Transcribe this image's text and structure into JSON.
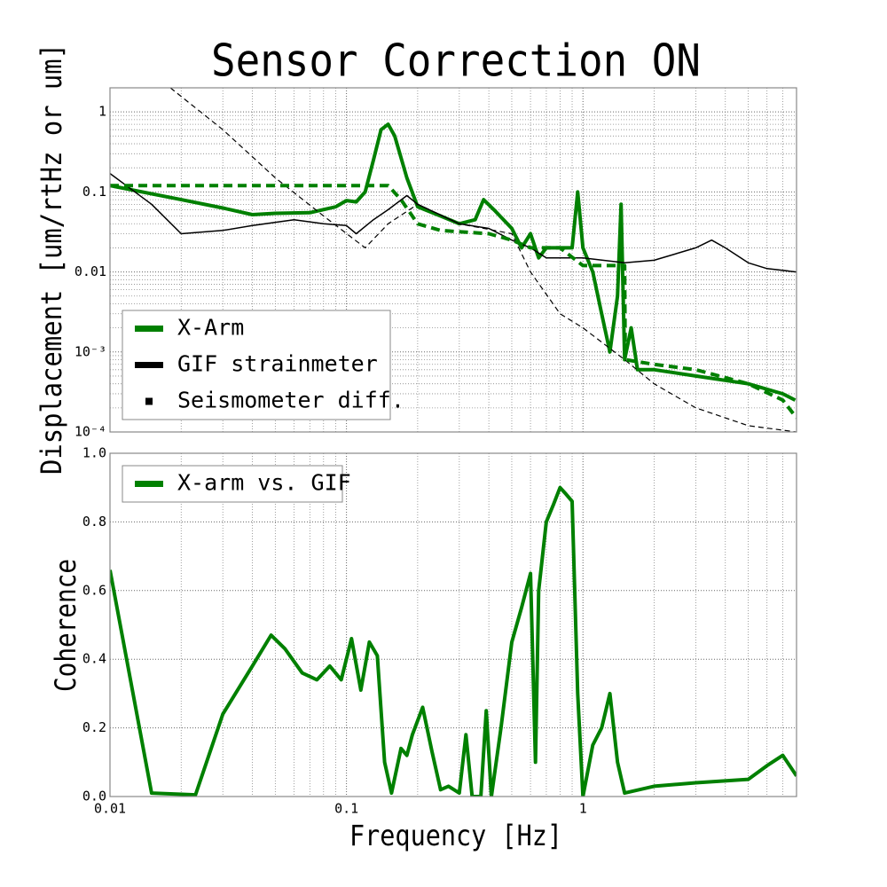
{
  "chart_data": [
    {
      "type": "line",
      "title": "Sensor Correction ON",
      "ylabel": "Displacement [um/rtHz or um]",
      "xscale": "log",
      "yscale": "log",
      "grid": true,
      "legend": "lower left",
      "xlim": [
        0.01,
        8
      ],
      "ylim": [
        0.0001,
        2
      ],
      "xticks": [
        0.01,
        0.1,
        1
      ],
      "yticks": [
        {
          "value": 0.0001,
          "label": "10⁻⁴"
        },
        {
          "value": 0.001,
          "label": "10⁻³"
        },
        0.01,
        0.1,
        1
      ],
      "series": [
        {
          "name": "X-Arm",
          "color": "#008000",
          "width": 4,
          "dash": false,
          "x": [
            0.01,
            0.02,
            0.03,
            0.04,
            0.05,
            0.07,
            0.09,
            0.1,
            0.11,
            0.12,
            0.13,
            0.14,
            0.15,
            0.16,
            0.18,
            0.2,
            0.25,
            0.3,
            0.35,
            0.38,
            0.42,
            0.5,
            0.55,
            0.6,
            0.65,
            0.7,
            0.8,
            0.9,
            0.95,
            1.0,
            1.1,
            1.2,
            1.3,
            1.4,
            1.45,
            1.5,
            1.6,
            1.7,
            2,
            3,
            5,
            7,
            7.9
          ],
          "values": [
            0.12,
            0.08,
            0.063,
            0.052,
            0.054,
            0.055,
            0.065,
            0.078,
            0.075,
            0.1,
            0.25,
            0.6,
            0.7,
            0.5,
            0.15,
            0.065,
            0.05,
            0.04,
            0.045,
            0.08,
            0.06,
            0.035,
            0.02,
            0.03,
            0.015,
            0.02,
            0.02,
            0.02,
            0.1,
            0.02,
            0.01,
            0.003,
            0.001,
            0.005,
            0.07,
            0.0008,
            0.002,
            0.0006,
            0.0006,
            0.0005,
            0.0004,
            0.0003,
            0.00025
          ]
        },
        {
          "name": "GIF strainmeter",
          "color": "#000000",
          "width": 1.5,
          "dash": false,
          "x": [
            0.01,
            0.015,
            0.02,
            0.03,
            0.04,
            0.06,
            0.08,
            0.1,
            0.11,
            0.13,
            0.15,
            0.18,
            0.2,
            0.3,
            0.4,
            0.5,
            0.6,
            0.7,
            1,
            1.5,
            2,
            3,
            3.5,
            4,
            5,
            6,
            8
          ],
          "values": [
            0.17,
            0.07,
            0.03,
            0.033,
            0.038,
            0.045,
            0.04,
            0.038,
            0.03,
            0.045,
            0.06,
            0.09,
            0.07,
            0.04,
            0.035,
            0.025,
            0.02,
            0.015,
            0.015,
            0.013,
            0.014,
            0.02,
            0.025,
            0.02,
            0.013,
            0.011,
            0.01
          ]
        },
        {
          "name": "Seismometer diff.",
          "color": "#000000",
          "width": 1.2,
          "dash": true,
          "x": [
            0.018,
            0.03,
            0.05,
            0.08,
            0.12,
            0.15,
            0.2,
            0.3,
            0.5,
            0.6,
            0.8,
            1,
            1.5,
            2,
            3,
            5,
            8
          ],
          "values": [
            2,
            0.6,
            0.15,
            0.05,
            0.02,
            0.04,
            0.07,
            0.04,
            0.03,
            0.01,
            0.003,
            0.002,
            0.0008,
            0.0004,
            0.0002,
            0.00012,
            0.0001
          ]
        },
        {
          "color": "#008000",
          "width": 4,
          "dash": true,
          "x": [
            0.01,
            0.15,
            0.17,
            0.2,
            0.25,
            0.4,
            0.5,
            0.6,
            0.8,
            1,
            1.5,
            1.51,
            2,
            3,
            5,
            7,
            8
          ],
          "values": [
            0.12,
            0.12,
            0.08,
            0.04,
            0.033,
            0.03,
            0.025,
            0.02,
            0.02,
            0.012,
            0.012,
            0.0008,
            0.0007,
            0.0006,
            0.0004,
            0.00025,
            0.00015
          ]
        }
      ]
    },
    {
      "type": "line",
      "ylabel": "Coherence",
      "xlabel": "Frequency [Hz]",
      "xscale": "log",
      "yscale": "linear",
      "grid": true,
      "legend": "upper left",
      "xlim": [
        0.01,
        8
      ],
      "ylim": [
        0,
        1
      ],
      "xticks": [
        0.01,
        0.1,
        1
      ],
      "yticks": [
        {
          "value": 0,
          "label": "0.0"
        },
        0.2,
        0.4,
        0.6,
        0.8,
        {
          "value": 1,
          "label": "1.0"
        }
      ],
      "series": [
        {
          "name": "X-arm vs. GIF",
          "color": "#008000",
          "width": 4,
          "dash": false,
          "x": [
            0.01,
            0.015,
            0.023,
            0.03,
            0.04,
            0.048,
            0.055,
            0.065,
            0.075,
            0.085,
            0.095,
            0.105,
            0.115,
            0.125,
            0.135,
            0.145,
            0.155,
            0.17,
            0.18,
            0.19,
            0.21,
            0.23,
            0.25,
            0.27,
            0.3,
            0.32,
            0.34,
            0.37,
            0.39,
            0.41,
            0.45,
            0.5,
            0.55,
            0.6,
            0.63,
            0.65,
            0.7,
            0.75,
            0.8,
            0.85,
            0.9,
            0.95,
            1.0,
            1.1,
            1.2,
            1.3,
            1.4,
            1.5,
            2,
            3,
            5,
            6,
            7,
            8
          ],
          "values": [
            0.66,
            0.01,
            0.005,
            0.24,
            0.38,
            0.47,
            0.43,
            0.36,
            0.34,
            0.38,
            0.34,
            0.46,
            0.31,
            0.45,
            0.41,
            0.1,
            0.01,
            0.14,
            0.12,
            0.18,
            0.26,
            0.13,
            0.02,
            0.03,
            0.01,
            0.18,
            0,
            0,
            0.25,
            0,
            0.2,
            0.45,
            0.55,
            0.65,
            0.1,
            0.6,
            0.8,
            0.85,
            0.9,
            0.88,
            0.86,
            0.3,
            0,
            0.15,
            0.2,
            0.3,
            0.1,
            0.01,
            0.03,
            0.04,
            0.05,
            0.09,
            0.12,
            0.06
          ]
        }
      ]
    }
  ]
}
